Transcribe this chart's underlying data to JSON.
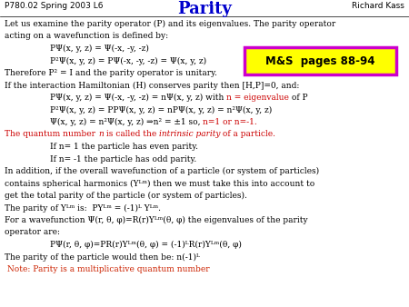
{
  "title": "Parity",
  "top_left": "P780.02 Spring 2003 L6",
  "top_right": "Richard Kass",
  "bg_color": "#ffffff",
  "title_color": "#0000cc",
  "title_fontsize": 13,
  "header_fontsize": 6.5,
  "body_fontsize": 6.5,
  "box_text": "M&S  pages 88-94",
  "box_color": "#ffff00",
  "box_border": "#cc00cc",
  "red_color": "#cc0000",
  "black_color": "#000000",
  "note_color": "#cc2200"
}
